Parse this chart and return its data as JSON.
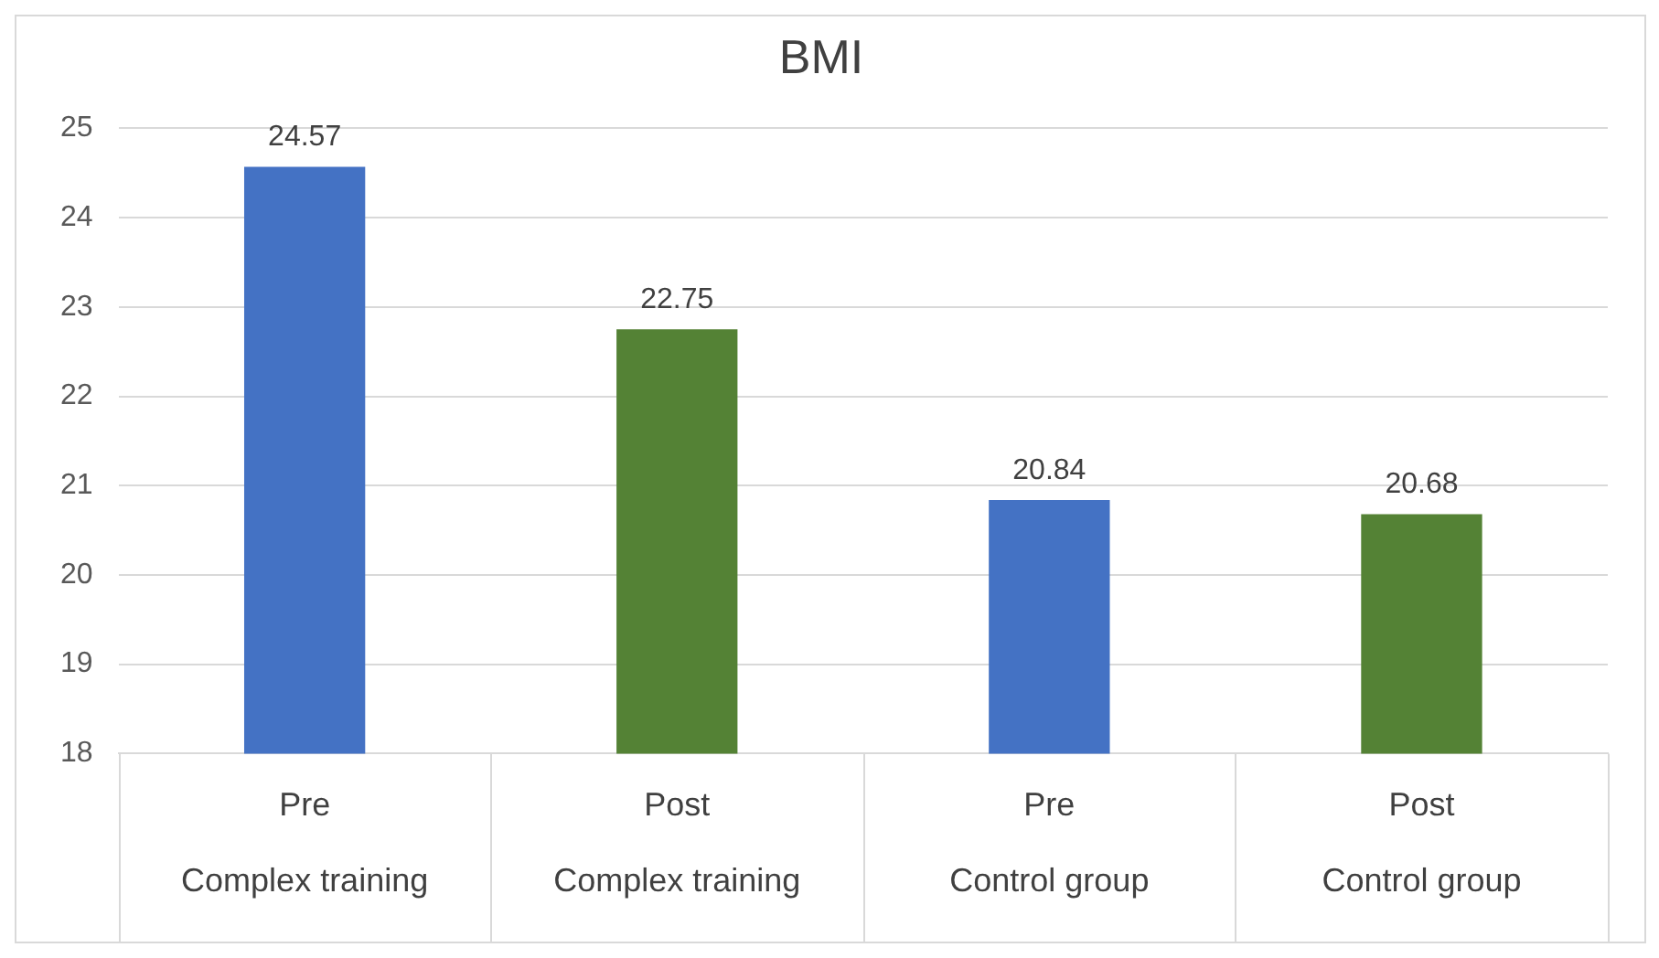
{
  "chart_data": {
    "type": "bar",
    "title": "BMI",
    "categories": [
      "Pre\nComplex training",
      "Post\nComplex training",
      "Pre\nControl group",
      "Post\nControl group"
    ],
    "values": [
      24.57,
      22.75,
      20.84,
      20.68
    ],
    "colors": [
      "#4472c4",
      "#548235",
      "#4472c4",
      "#548235"
    ],
    "ylim": [
      18,
      25
    ],
    "yticks": [
      18,
      19,
      20,
      21,
      22,
      23,
      24,
      25
    ],
    "grid": "y",
    "data_labels": true,
    "legend": false
  }
}
